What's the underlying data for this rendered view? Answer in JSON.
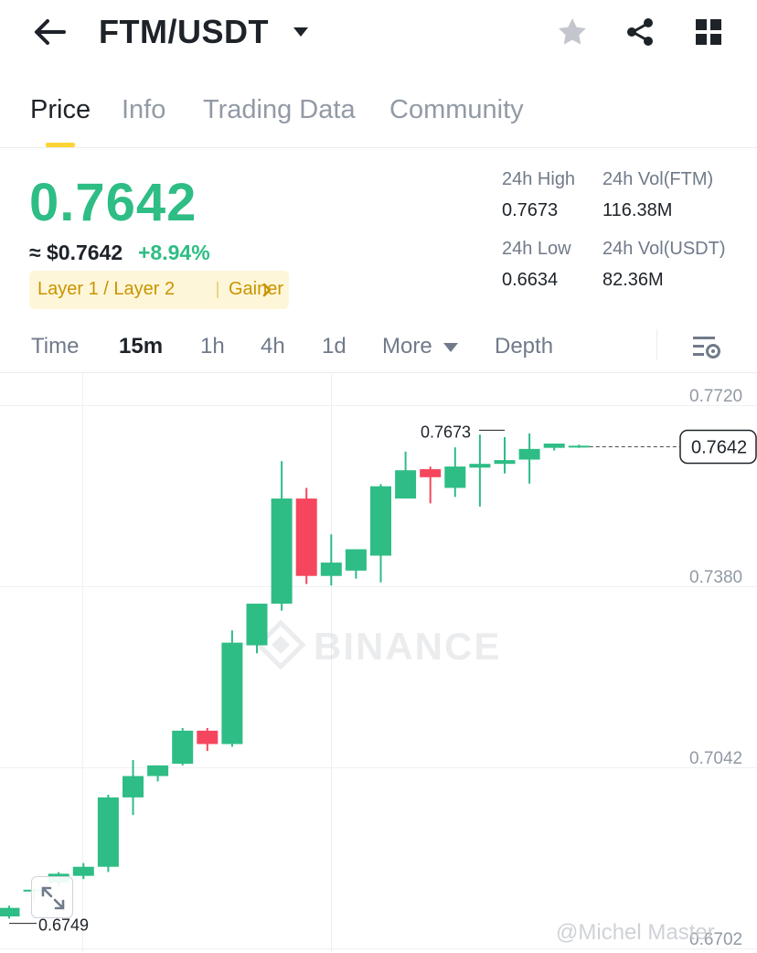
{
  "header": {
    "pair": "FTM/USDT",
    "icons": [
      "back-arrow-icon",
      "caret-down-icon",
      "star-icon",
      "share-icon",
      "grid-icon"
    ]
  },
  "tabs": [
    {
      "label": "Price",
      "active": true
    },
    {
      "label": "Info",
      "active": false
    },
    {
      "label": "Trading Data",
      "active": false
    },
    {
      "label": "Community",
      "active": false
    }
  ],
  "price": {
    "last": "0.7642",
    "usd": "≈ $0.7642",
    "change": "+8.94%",
    "tag1": "Layer 1 / Layer 2",
    "tag2": "Gainer"
  },
  "stats": {
    "high_label": "24h High",
    "high_value": "0.7673",
    "vol_ftm_label": "24h Vol(FTM)",
    "vol_ftm_value": "116.38M",
    "low_label": "24h Low",
    "low_value": "0.6634",
    "vol_usdt_label": "24h Vol(USDT)",
    "vol_usdt_value": "82.36M"
  },
  "intervals": [
    {
      "label": "Time",
      "active": false
    },
    {
      "label": "15m",
      "active": true
    },
    {
      "label": "1h",
      "active": false
    },
    {
      "label": "4h",
      "active": false
    },
    {
      "label": "1d",
      "active": false
    },
    {
      "label": "More",
      "active": false
    },
    {
      "label": "Depth",
      "active": false
    }
  ],
  "colors": {
    "up": "#2ebd85",
    "down": "#f6465d",
    "accent": "#fcd535"
  },
  "watermark": {
    "brand": "BINANCE",
    "user": "@Michel Master"
  },
  "chart_data": {
    "type": "candlestick",
    "ylim": [
      0.6702,
      0.7744
    ],
    "y_ticks": [
      "0.7720",
      "0.7380",
      "0.7042",
      "0.6702"
    ],
    "last_price_label": "0.7642",
    "max_label": "0.7673",
    "min_label": "0.6749",
    "candles": [
      {
        "open": 0.6762,
        "high": 0.6782,
        "low": 0.6758,
        "close": 0.6778
      },
      {
        "open": 0.681,
        "high": 0.6815,
        "low": 0.679,
        "close": 0.6812
      },
      {
        "open": 0.6825,
        "high": 0.6845,
        "low": 0.6818,
        "close": 0.6842
      },
      {
        "open": 0.6838,
        "high": 0.6862,
        "low": 0.6832,
        "close": 0.6855
      },
      {
        "open": 0.6855,
        "high": 0.699,
        "low": 0.6845,
        "close": 0.6985
      },
      {
        "open": 0.6985,
        "high": 0.7055,
        "low": 0.6952,
        "close": 0.7025
      },
      {
        "open": 0.7025,
        "high": 0.7045,
        "low": 0.7015,
        "close": 0.7045
      },
      {
        "open": 0.7048,
        "high": 0.7115,
        "low": 0.7045,
        "close": 0.711
      },
      {
        "open": 0.711,
        "high": 0.7115,
        "low": 0.7072,
        "close": 0.7085
      },
      {
        "open": 0.7085,
        "high": 0.7298,
        "low": 0.708,
        "close": 0.7275
      },
      {
        "open": 0.727,
        "high": 0.734,
        "low": 0.7255,
        "close": 0.7348
      },
      {
        "open": 0.7348,
        "high": 0.7615,
        "low": 0.7335,
        "close": 0.7545
      },
      {
        "open": 0.7545,
        "high": 0.7565,
        "low": 0.7385,
        "close": 0.74
      },
      {
        "open": 0.74,
        "high": 0.7478,
        "low": 0.7382,
        "close": 0.7425
      },
      {
        "open": 0.741,
        "high": 0.745,
        "low": 0.7395,
        "close": 0.745
      },
      {
        "open": 0.7438,
        "high": 0.7572,
        "low": 0.7388,
        "close": 0.7568
      },
      {
        "open": 0.7545,
        "high": 0.7633,
        "low": 0.7555,
        "close": 0.7598
      },
      {
        "open": 0.76,
        "high": 0.7605,
        "low": 0.7536,
        "close": 0.7585
      },
      {
        "open": 0.7565,
        "high": 0.7641,
        "low": 0.7548,
        "close": 0.7605
      },
      {
        "open": 0.7603,
        "high": 0.7665,
        "low": 0.753,
        "close": 0.761
      },
      {
        "open": 0.761,
        "high": 0.766,
        "low": 0.7592,
        "close": 0.7617
      },
      {
        "open": 0.7618,
        "high": 0.7667,
        "low": 0.7573,
        "close": 0.7638
      },
      {
        "open": 0.764,
        "high": 0.7646,
        "low": 0.7635,
        "close": 0.7648
      },
      {
        "open": 0.7642,
        "high": 0.7646,
        "low": 0.764,
        "close": 0.7644
      }
    ]
  }
}
